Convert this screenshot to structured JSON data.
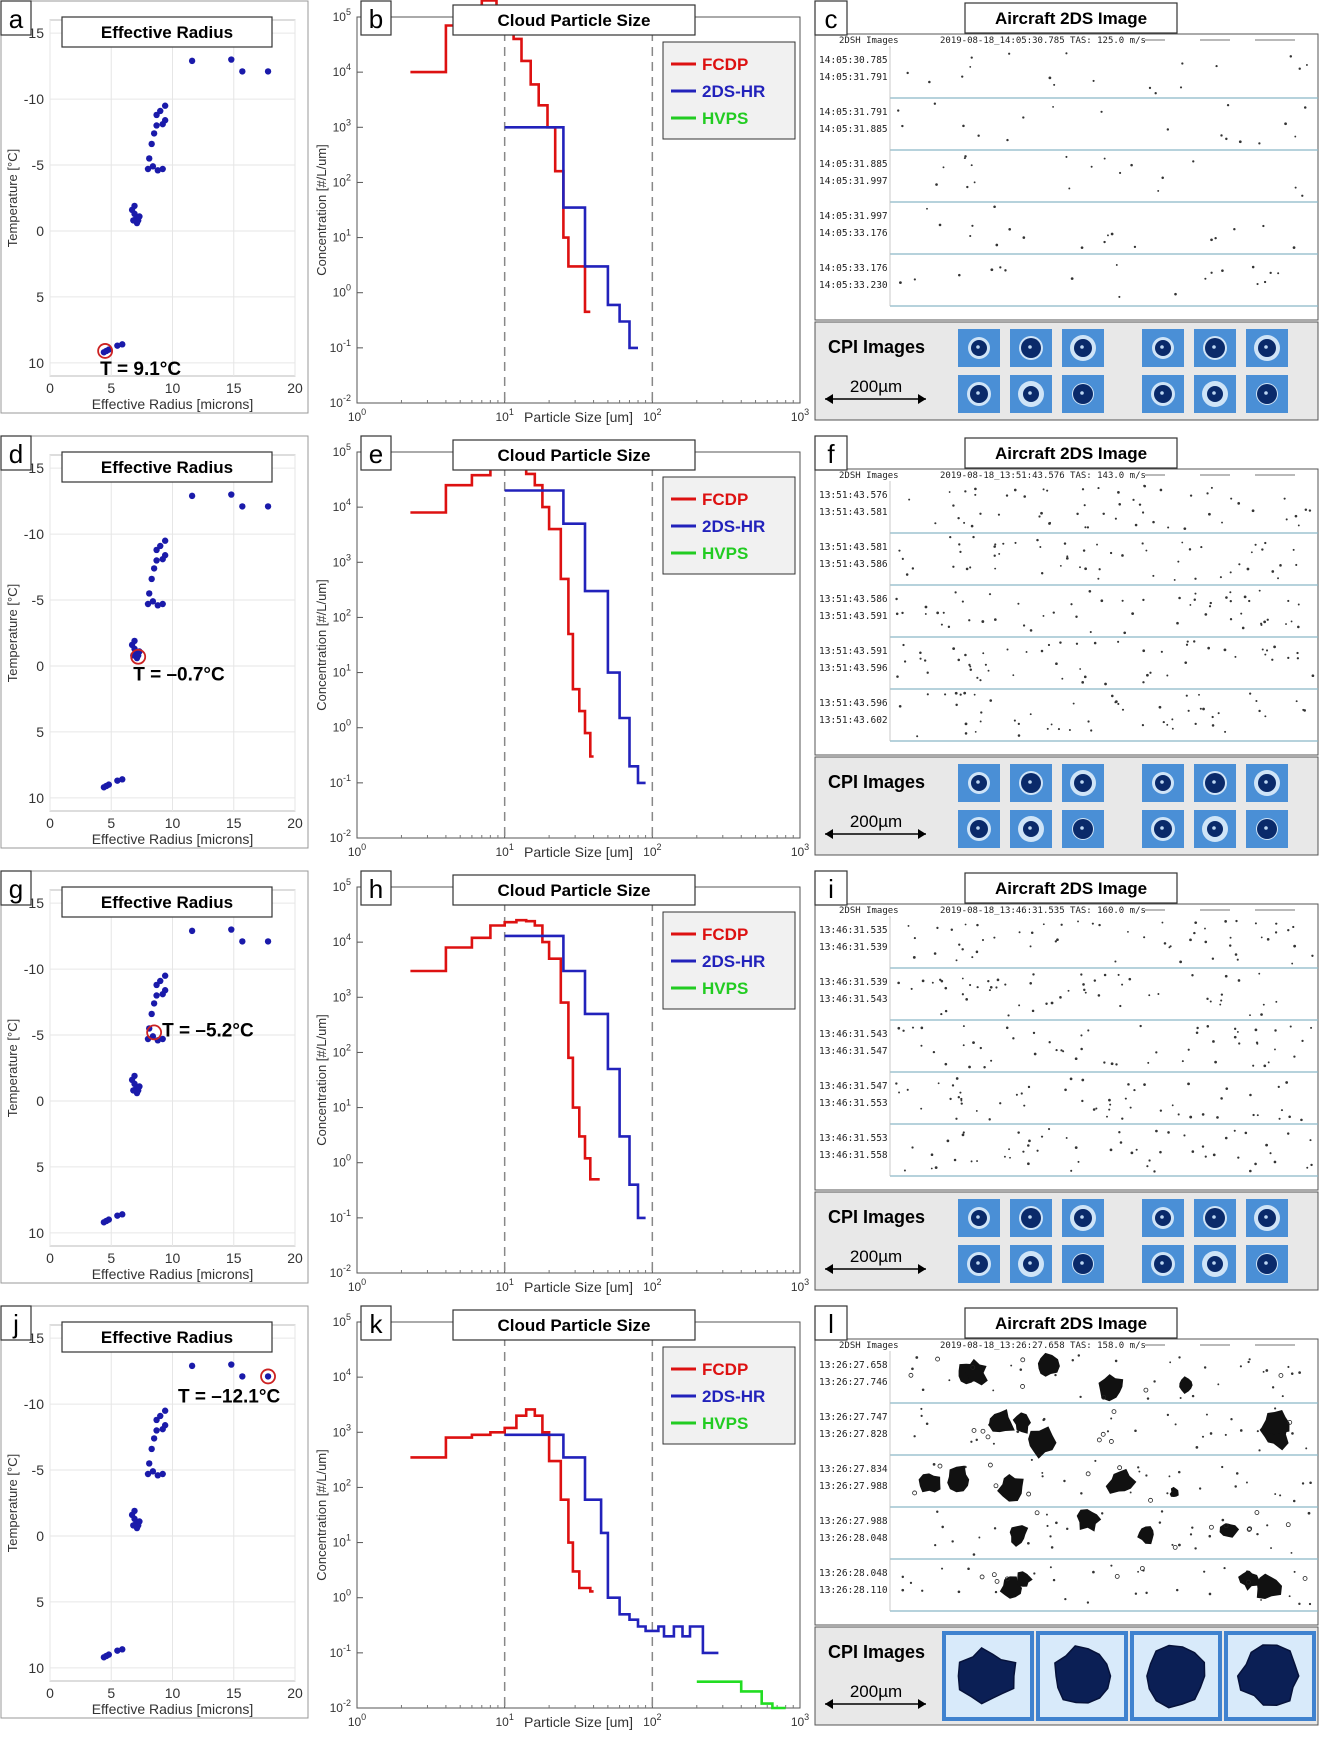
{
  "rows": [
    {
      "panel_letters": [
        "a",
        "b",
        "c"
      ],
      "scatter": {
        "title": "Effective Radius",
        "temp_label": "T = 9.1°C",
        "highlight": {
          "x": 4.5,
          "y": 9.1
        }
      },
      "psd": {
        "title": "Cloud Particle Size",
        "series": [
          {
            "name": "FCDP",
            "color": "#dd1111",
            "steps": [
              [
                2.3,
                10000.0
              ],
              [
                4,
                70000.0
              ],
              [
                5.6,
                90000.0
              ],
              [
                7,
                200000.0
              ],
              [
                8.8,
                150000.0
              ],
              [
                10,
                120000.0
              ],
              [
                11.5,
                40000.0
              ],
              [
                13,
                16000.0
              ],
              [
                15,
                6000.0
              ],
              [
                17,
                2500.0
              ],
              [
                19.5,
                1000.0
              ],
              [
                22,
                160.0
              ],
              [
                25,
                10.0
              ],
              [
                27,
                3
              ],
              [
                30,
                3
              ],
              [
                35,
                0.45
              ],
              [
                38,
                0.45
              ]
            ]
          },
          {
            "name": "2DS-HR",
            "color": "#2222bb",
            "steps": [
              [
                10,
                1000.0
              ],
              [
                20,
                1000.0
              ],
              [
                25,
                35.0
              ],
              [
                30,
                35.0
              ],
              [
                35,
                3
              ],
              [
                45,
                3
              ],
              [
                50,
                0.6
              ],
              [
                60,
                0.3
              ],
              [
                70,
                0.1
              ],
              [
                80,
                0.1
              ]
            ]
          }
        ]
      },
      "twods": {
        "title": "Aircraft 2DS Image",
        "header_left": "2DSH Images",
        "header_right": "2019-08-18_14:05:30.785   TAS: 125.0 m/s",
        "strips": [
          [
            "14:05:30.785",
            "14:05:31.791"
          ],
          [
            "14:05:31.791",
            "14:05:31.885"
          ],
          [
            "14:05:31.885",
            "14:05:31.997"
          ],
          [
            "14:05:31.997",
            "14:05:33.176"
          ],
          [
            "14:05:33.176",
            "14:05:33.230"
          ]
        ]
      },
      "cpi": {
        "label": "CPI Images",
        "scale": "200µm",
        "layout": "small",
        "count": 12
      }
    },
    {
      "panel_letters": [
        "d",
        "e",
        "f"
      ],
      "scatter": {
        "title": "Effective Radius",
        "temp_label": "T = –0.7°C",
        "highlight": {
          "x": 7.2,
          "y": -0.7
        }
      },
      "psd": {
        "title": "Cloud Particle Size",
        "series": [
          {
            "name": "FCDP",
            "color": "#dd1111",
            "steps": [
              [
                2.3,
                8000.0
              ],
              [
                4,
                25000.0
              ],
              [
                6,
                38000.0
              ],
              [
                8,
                50000.0
              ],
              [
                10,
                55000.0
              ],
              [
                12,
                50000.0
              ],
              [
                14,
                40000.0
              ],
              [
                16,
                25000.0
              ],
              [
                18,
                10000.0
              ],
              [
                20,
                4000.0
              ],
              [
                24,
                500.0
              ],
              [
                27,
                50.0
              ],
              [
                29,
                5
              ],
              [
                32,
                2
              ],
              [
                35,
                0.8
              ],
              [
                38,
                0.3
              ],
              [
                40,
                0.3
              ]
            ]
          },
          {
            "name": "2DS-HR",
            "color": "#2222bb",
            "steps": [
              [
                10,
                20000.0
              ],
              [
                20,
                20000.0
              ],
              [
                25,
                5000.0
              ],
              [
                30,
                5000.0
              ],
              [
                35,
                300.0
              ],
              [
                45,
                300.0
              ],
              [
                50,
                10.0
              ],
              [
                60,
                1.5
              ],
              [
                70,
                0.2
              ],
              [
                80,
                0.1
              ],
              [
                90,
                0.1
              ]
            ]
          }
        ]
      },
      "twods": {
        "title": "Aircraft 2DS Image",
        "header_left": "2DSH Images",
        "header_right": "2019-08-18_13:51:43.576   TAS: 143.0 m/s",
        "strips": [
          [
            "13:51:43.576",
            "13:51:43.581"
          ],
          [
            "13:51:43.581",
            "13:51:43.586"
          ],
          [
            "13:51:43.586",
            "13:51:43.591"
          ],
          [
            "13:51:43.591",
            "13:51:43.596"
          ],
          [
            "13:51:43.596",
            "13:51:43.602"
          ]
        ]
      },
      "cpi": {
        "label": "CPI Images",
        "scale": "200µm",
        "layout": "small",
        "count": 12
      }
    },
    {
      "panel_letters": [
        "g",
        "h",
        "i"
      ],
      "scatter": {
        "title": "Effective Radius",
        "temp_label": "T = –5.2°C",
        "highlight": {
          "x": 8.5,
          "y": -5.2
        }
      },
      "psd": {
        "title": "Cloud Particle Size",
        "series": [
          {
            "name": "FCDP",
            "color": "#dd1111",
            "steps": [
              [
                2.3,
                3000.0
              ],
              [
                4,
                8000.0
              ],
              [
                6,
                12000.0
              ],
              [
                8,
                20000.0
              ],
              [
                10,
                23000.0
              ],
              [
                12,
                25000.0
              ],
              [
                14,
                24000.0
              ],
              [
                16,
                20000.0
              ],
              [
                18,
                10000.0
              ],
              [
                20,
                5000.0
              ],
              [
                24,
                800.0
              ],
              [
                27,
                80.0
              ],
              [
                29,
                10.0
              ],
              [
                32,
                3
              ],
              [
                35,
                1.2
              ],
              [
                38,
                0.5
              ],
              [
                44,
                0.5
              ]
            ]
          },
          {
            "name": "2DS-HR",
            "color": "#2222bb",
            "steps": [
              [
                10,
                13000.0
              ],
              [
                20,
                13000.0
              ],
              [
                25,
                3000.0
              ],
              [
                30,
                3000.0
              ],
              [
                35,
                500.0
              ],
              [
                45,
                500.0
              ],
              [
                50,
                50.0
              ],
              [
                60,
                3
              ],
              [
                70,
                0.4
              ],
              [
                80,
                0.1
              ],
              [
                90,
                0.1
              ]
            ]
          }
        ]
      },
      "twods": {
        "title": "Aircraft 2DS Image",
        "header_left": "2DSH Images",
        "header_right": "2019-08-18_13:46:31.535   TAS: 160.0 m/s",
        "strips": [
          [
            "13:46:31.535",
            "13:46:31.539"
          ],
          [
            "13:46:31.539",
            "13:46:31.543"
          ],
          [
            "13:46:31.543",
            "13:46:31.547"
          ],
          [
            "13:46:31.547",
            "13:46:31.553"
          ],
          [
            "13:46:31.553",
            "13:46:31.558"
          ]
        ]
      },
      "cpi": {
        "label": "CPI Images",
        "scale": "200µm",
        "layout": "small",
        "count": 12
      }
    },
    {
      "panel_letters": [
        "j",
        "k",
        "l"
      ],
      "scatter": {
        "title": "Effective Radius",
        "temp_label": "T = –12.1°C",
        "highlight": {
          "x": 17.8,
          "y": -12.1
        }
      },
      "psd": {
        "title": "Cloud Particle Size",
        "series": [
          {
            "name": "FCDP",
            "color": "#dd1111",
            "steps": [
              [
                2.3,
                350.0
              ],
              [
                4,
                800.0
              ],
              [
                6,
                900.0
              ],
              [
                8,
                1000.0
              ],
              [
                10,
                1200.0
              ],
              [
                12,
                2000.0
              ],
              [
                14,
                2600.0
              ],
              [
                16,
                2000.0
              ],
              [
                18,
                1000.0
              ],
              [
                20,
                300.0
              ],
              [
                24,
                60.0
              ],
              [
                27,
                10.0
              ],
              [
                29,
                3
              ],
              [
                32,
                1.5
              ],
              [
                35,
                1.5
              ],
              [
                38,
                1.3
              ],
              [
                40,
                1.3
              ]
            ]
          },
          {
            "name": "2DS-HR",
            "color": "#2222bb",
            "steps": [
              [
                10,
                900.0
              ],
              [
                20,
                900.0
              ],
              [
                25,
                350.0
              ],
              [
                35,
                60.0
              ],
              [
                45,
                15.0
              ],
              [
                50,
                1
              ],
              [
                60,
                0.5
              ],
              [
                70,
                0.4
              ],
              [
                80,
                0.3
              ],
              [
                90,
                0.25
              ],
              [
                100,
                0.25
              ],
              [
                110,
                0.3
              ],
              [
                120,
                0.2
              ],
              [
                140,
                0.3
              ],
              [
                160,
                0.2
              ],
              [
                180,
                0.3
              ],
              [
                220,
                0.1
              ],
              [
                280,
                0.1
              ]
            ]
          },
          {
            "name": "HVPS",
            "color": "#22dd22",
            "steps": [
              [
                200,
                0.03
              ],
              [
                350,
                0.03
              ],
              [
                400,
                0.02
              ],
              [
                550,
                0.012
              ],
              [
                650,
                0.01
              ],
              [
                800,
                0.01
              ]
            ]
          }
        ]
      },
      "twods": {
        "title": "Aircraft 2DS Image",
        "header_left": "2DSH Images",
        "header_right": "2019-08-18_13:26:27.658   TAS: 158.0 m/s",
        "strips": [
          [
            "13:26:27.658",
            "13:26:27.746"
          ],
          [
            "13:26:27.747",
            "13:26:27.828"
          ],
          [
            "13:26:27.834",
            "13:26:27.988"
          ],
          [
            "13:26:27.988",
            "13:26:28.048"
          ],
          [
            "13:26:28.048",
            "13:26:28.110"
          ]
        ]
      },
      "cpi": {
        "label": "CPI Images",
        "scale": "200µm",
        "layout": "large",
        "count": 4
      }
    }
  ],
  "chart_data": [
    {
      "type": "scatter",
      "title": "Effective Radius",
      "xlabel": "Effective Radius [microns]",
      "ylabel": "Temperature [°C]",
      "xlim": [
        0,
        20
      ],
      "ylim": [
        11,
        -16
      ],
      "y_reversed": true,
      "xticks": [
        "0",
        "5",
        "10",
        "15",
        "20"
      ],
      "yticks": [
        "-15",
        "-10",
        "-5",
        "0",
        "5",
        "10"
      ],
      "grid": true,
      "color": "#1a1aaa",
      "points": [
        [
          4.4,
          9.2
        ],
        [
          4.6,
          9.1
        ],
        [
          4.8,
          9.0
        ],
        [
          5.5,
          8.7
        ],
        [
          5.9,
          8.6
        ],
        [
          6.7,
          -1.6
        ],
        [
          6.9,
          -1.9
        ],
        [
          6.9,
          -1.3
        ],
        [
          7.0,
          -0.9
        ],
        [
          7.1,
          -0.6
        ],
        [
          7.2,
          -0.8
        ],
        [
          7.3,
          -1.1
        ],
        [
          6.8,
          -0.8
        ],
        [
          8.0,
          -4.7
        ],
        [
          8.4,
          -4.9
        ],
        [
          8.8,
          -4.6
        ],
        [
          9.2,
          -4.7
        ],
        [
          8.1,
          -5.5
        ],
        [
          8.3,
          -6.6
        ],
        [
          8.5,
          -7.4
        ],
        [
          8.7,
          -8.0
        ],
        [
          9.2,
          -8.1
        ],
        [
          9.4,
          -8.4
        ],
        [
          8.7,
          -8.8
        ],
        [
          9.0,
          -9.1
        ],
        [
          9.4,
          -9.5
        ],
        [
          11.6,
          -12.9
        ],
        [
          14.8,
          -13.0
        ],
        [
          15.7,
          -12.1
        ],
        [
          17.8,
          -12.1
        ]
      ]
    },
    {
      "type": "line",
      "title": "Cloud Particle Size",
      "xlabel": "Particle Size [um]",
      "ylabel": "Concentration [#/L/um]",
      "x_scale": "log",
      "y_scale": "log",
      "xlim": [
        1,
        1000
      ],
      "ylim": [
        0.01,
        100000
      ],
      "xticks": [
        "10^0",
        "10^1",
        "10^2",
        "10^3"
      ],
      "yticks": [
        "10^-2",
        "10^-1",
        "10^0",
        "10^1",
        "10^2",
        "10^3",
        "10^4",
        "10^5"
      ],
      "vlines": [
        10,
        100
      ],
      "legend": [
        "FCDP",
        "2DS-HR",
        "HVPS"
      ],
      "legend_position": "top-right",
      "note": "step series per row in rows[].psd.series"
    }
  ]
}
